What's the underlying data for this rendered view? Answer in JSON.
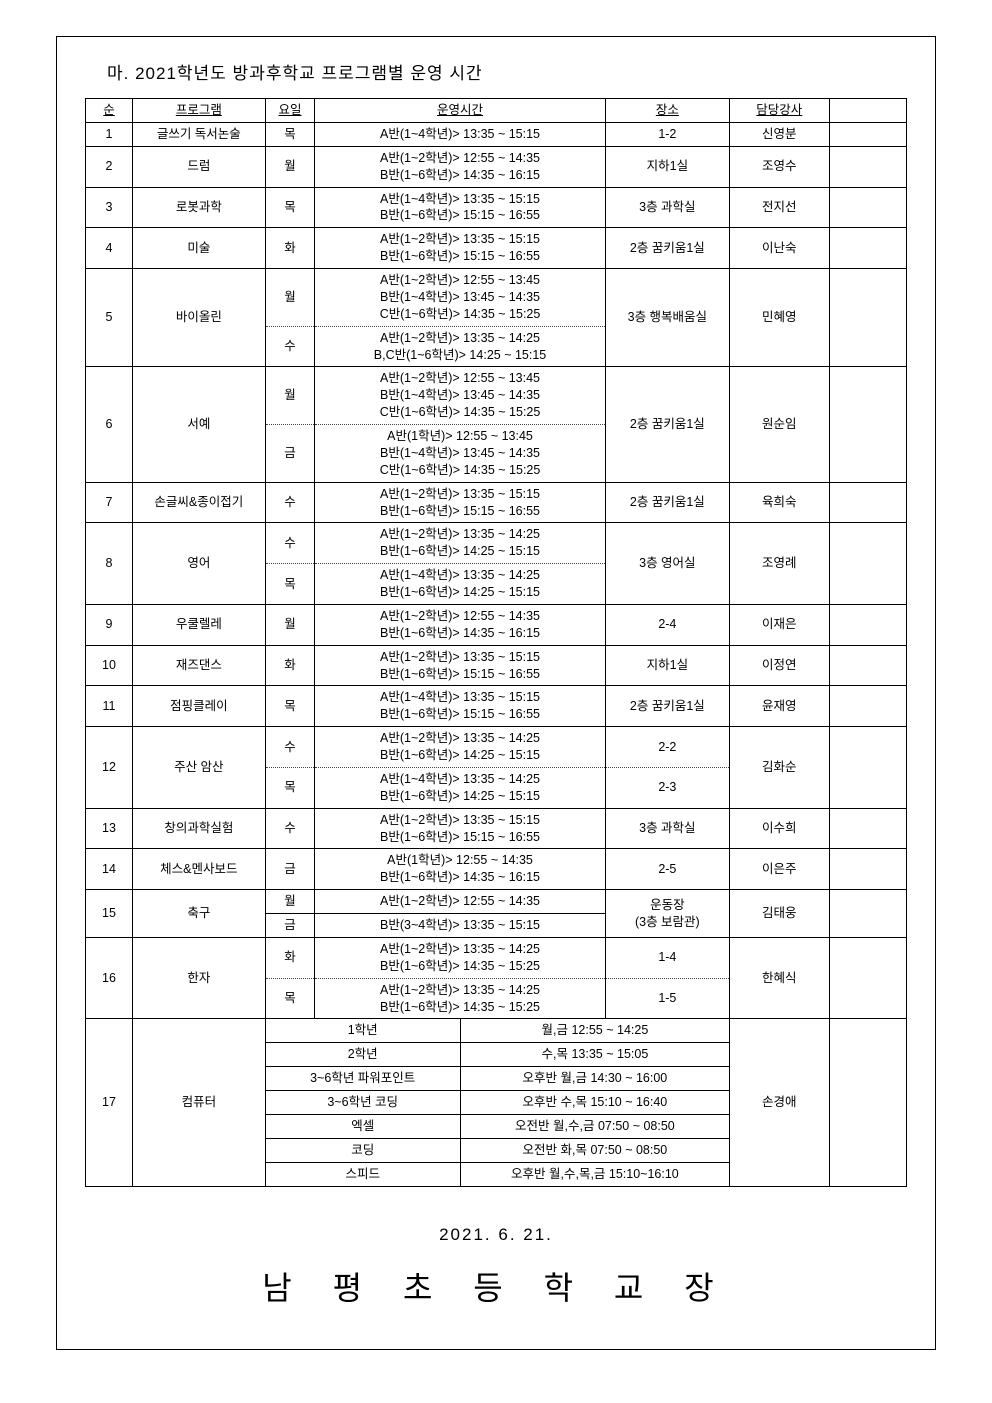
{
  "section_title": "마. 2021학년도 방과후학교 프로그램별 운영 시간",
  "headers": {
    "no": "순",
    "program": "프로그램",
    "day": "요일",
    "time": "운영시간",
    "place": "장소",
    "instructor": "담당강사",
    "extra": ""
  },
  "rows": [
    {
      "no": "1",
      "program": "글쓰기 독서논술",
      "cells": [
        {
          "day": "목",
          "time": "A반(1~4학년)> 13:35 ~ 15:15"
        }
      ],
      "place": "1-2",
      "instructor": "신영분"
    },
    {
      "no": "2",
      "program": "드럼",
      "cells": [
        {
          "day": "월",
          "time": "A반(1~2학년)> 12:55 ~ 14:35\nB반(1~6학년)> 14:35 ~ 16:15"
        }
      ],
      "place": "지하1실",
      "instructor": "조영수"
    },
    {
      "no": "3",
      "program": "로봇과학",
      "cells": [
        {
          "day": "목",
          "time": "A반(1~4학년)> 13:35 ~ 15:15\nB반(1~6학년)> 15:15 ~ 16:55"
        }
      ],
      "place": "3층 과학실",
      "instructor": "전지선"
    },
    {
      "no": "4",
      "program": "미술",
      "cells": [
        {
          "day": "화",
          "time": "A반(1~2학년)> 13:35 ~ 15:15\nB반(1~6학년)> 15:15 ~ 16:55"
        }
      ],
      "place": "2층 꿈키움1실",
      "instructor": "이난숙"
    },
    {
      "no": "5",
      "program": "바이올린",
      "cells": [
        {
          "day": "월",
          "time": "A반(1~2학년)> 12:55 ~ 13:45\nB반(1~4학년)> 13:45 ~ 14:35\nC반(1~6학년)> 14:35 ~ 15:25",
          "dashed": true
        },
        {
          "day": "수",
          "time": "A반(1~2학년)> 13:35 ~ 14:25\nB,C반(1~6학년)> 14:25 ~ 15:15"
        }
      ],
      "place": "3층 행복배움실",
      "instructor": "민혜영"
    },
    {
      "no": "6",
      "program": "서예",
      "cells": [
        {
          "day": "월",
          "time": "A반(1~2학년)> 12:55 ~ 13:45\nB반(1~4학년)> 13:45 ~ 14:35\nC반(1~6학년)> 14:35 ~ 15:25",
          "dashed": true
        },
        {
          "day": "금",
          "time": "A반(1학년)> 12:55 ~ 13:45\nB반(1~4학년)> 13:45 ~ 14:35\nC반(1~6학년)> 14:35 ~ 15:25"
        }
      ],
      "place": "2층 꿈키움1실",
      "instructor": "원순임"
    },
    {
      "no": "7",
      "program": "손글씨&종이접기",
      "cells": [
        {
          "day": "수",
          "time": "A반(1~2학년)> 13:35 ~ 15:15\nB반(1~6학년)> 15:15 ~ 16:55"
        }
      ],
      "place": "2층 꿈키움1실",
      "instructor": "육희숙"
    },
    {
      "no": "8",
      "program": "영어",
      "cells": [
        {
          "day": "수",
          "time": "A반(1~2학년)> 13:35 ~ 14:25\nB반(1~6학년)> 14:25 ~ 15:15",
          "dashed": true
        },
        {
          "day": "목",
          "time": "A반(1~4학년)> 13:35 ~ 14:25\nB반(1~6학년)> 14:25 ~ 15:15"
        }
      ],
      "place": "3층 영어실",
      "instructor": "조영례"
    },
    {
      "no": "9",
      "program": "우쿨렐레",
      "cells": [
        {
          "day": "월",
          "time": "A반(1~2학년)> 12:55 ~ 14:35\nB반(1~6학년)> 14:35 ~ 16:15"
        }
      ],
      "place": "2-4",
      "instructor": "이재은"
    },
    {
      "no": "10",
      "program": "재즈댄스",
      "cells": [
        {
          "day": "화",
          "time": "A반(1~2학년)> 13:35 ~ 15:15\nB반(1~6학년)> 15:15 ~ 16:55"
        }
      ],
      "place": "지하1실",
      "instructor": "이정연"
    },
    {
      "no": "11",
      "program": "점핑클레이",
      "cells": [
        {
          "day": "목",
          "time": "A반(1~4학년)> 13:35 ~ 15:15\nB반(1~6학년)> 15:15 ~ 16:55"
        }
      ],
      "place": "2층 꿈키움1실",
      "instructor": "윤재영"
    },
    {
      "no": "12",
      "program": "주산 암산",
      "cells": [
        {
          "day": "수",
          "time": "A반(1~2학년)> 13:35 ~ 14:25\nB반(1~6학년)> 14:25 ~ 15:15",
          "place": "2-2",
          "dashed": true,
          "dashedPlace": true
        },
        {
          "day": "목",
          "time": "A반(1~4학년)> 13:35 ~ 14:25\nB반(1~6학년)> 14:25 ~ 15:15",
          "place": "2-3"
        }
      ],
      "instructor": "김화순",
      "placePerCell": true
    },
    {
      "no": "13",
      "program": "창의과학실험",
      "cells": [
        {
          "day": "수",
          "time": "A반(1~2학년)> 13:35 ~ 15:15\nB반(1~6학년)> 15:15 ~ 16:55"
        }
      ],
      "place": "3층 과학실",
      "instructor": "이수희"
    },
    {
      "no": "14",
      "program": "체스&멘사보드",
      "cells": [
        {
          "day": "금",
          "time": "A반(1학년)> 12:55 ~ 14:35\nB반(1~6학년)> 14:35 ~ 16:15"
        }
      ],
      "place": "2-5",
      "instructor": "이은주"
    },
    {
      "no": "15",
      "program": "축구",
      "cells": [
        {
          "day": "월",
          "time": "A반(1~2학년)> 12:55 ~ 14:35",
          "place": "운동장",
          "dashed": false
        },
        {
          "day": "금",
          "time": "B반(3~4학년)> 13:35 ~ 15:15",
          "place": "(3층 보람관)"
        }
      ],
      "instructor": "김태웅",
      "placeMerged": "운동장\n(3층 보람관)",
      "dayStack": true
    },
    {
      "no": "16",
      "program": "한자",
      "cells": [
        {
          "day": "화",
          "time": "A반(1~2학년)> 13:35 ~ 14:25\nB반(1~6학년)> 14:35 ~ 15:25",
          "place": "1-4",
          "dashed": true,
          "dashedPlace": true
        },
        {
          "day": "목",
          "time": "A반(1~2학년)> 13:35 ~ 14:25\nB반(1~6학년)> 14:35 ~ 15:25",
          "place": "1-5"
        }
      ],
      "instructor": "한혜식",
      "placePerCell": true
    }
  ],
  "row17": {
    "no": "17",
    "program": "컴퓨터",
    "sub": [
      {
        "left": "1학년",
        "right": "월,금 12:55 ~ 14:25"
      },
      {
        "left": "2학년",
        "right": "수,목 13:35 ~ 15:05"
      },
      {
        "left": "3~6학년 파워포인트",
        "right": "오후반 월,금 14:30 ~ 16:00"
      },
      {
        "left": "3~6학년 코딩",
        "right": "오후반 수,목  15:10 ~ 16:40"
      },
      {
        "left": "엑셀",
        "right": "오전반 월,수,금 07:50 ~ 08:50"
      },
      {
        "left": "코딩",
        "right": "오전반 화,목 07:50 ~ 08:50"
      },
      {
        "left": "스피드",
        "right": "오후반 월,수,목,금 15:10~16:10"
      }
    ],
    "instructor": "손경애"
  },
  "date_line": "2021. 6. 21.",
  "principal": "남 평 초 등 학 교 장"
}
